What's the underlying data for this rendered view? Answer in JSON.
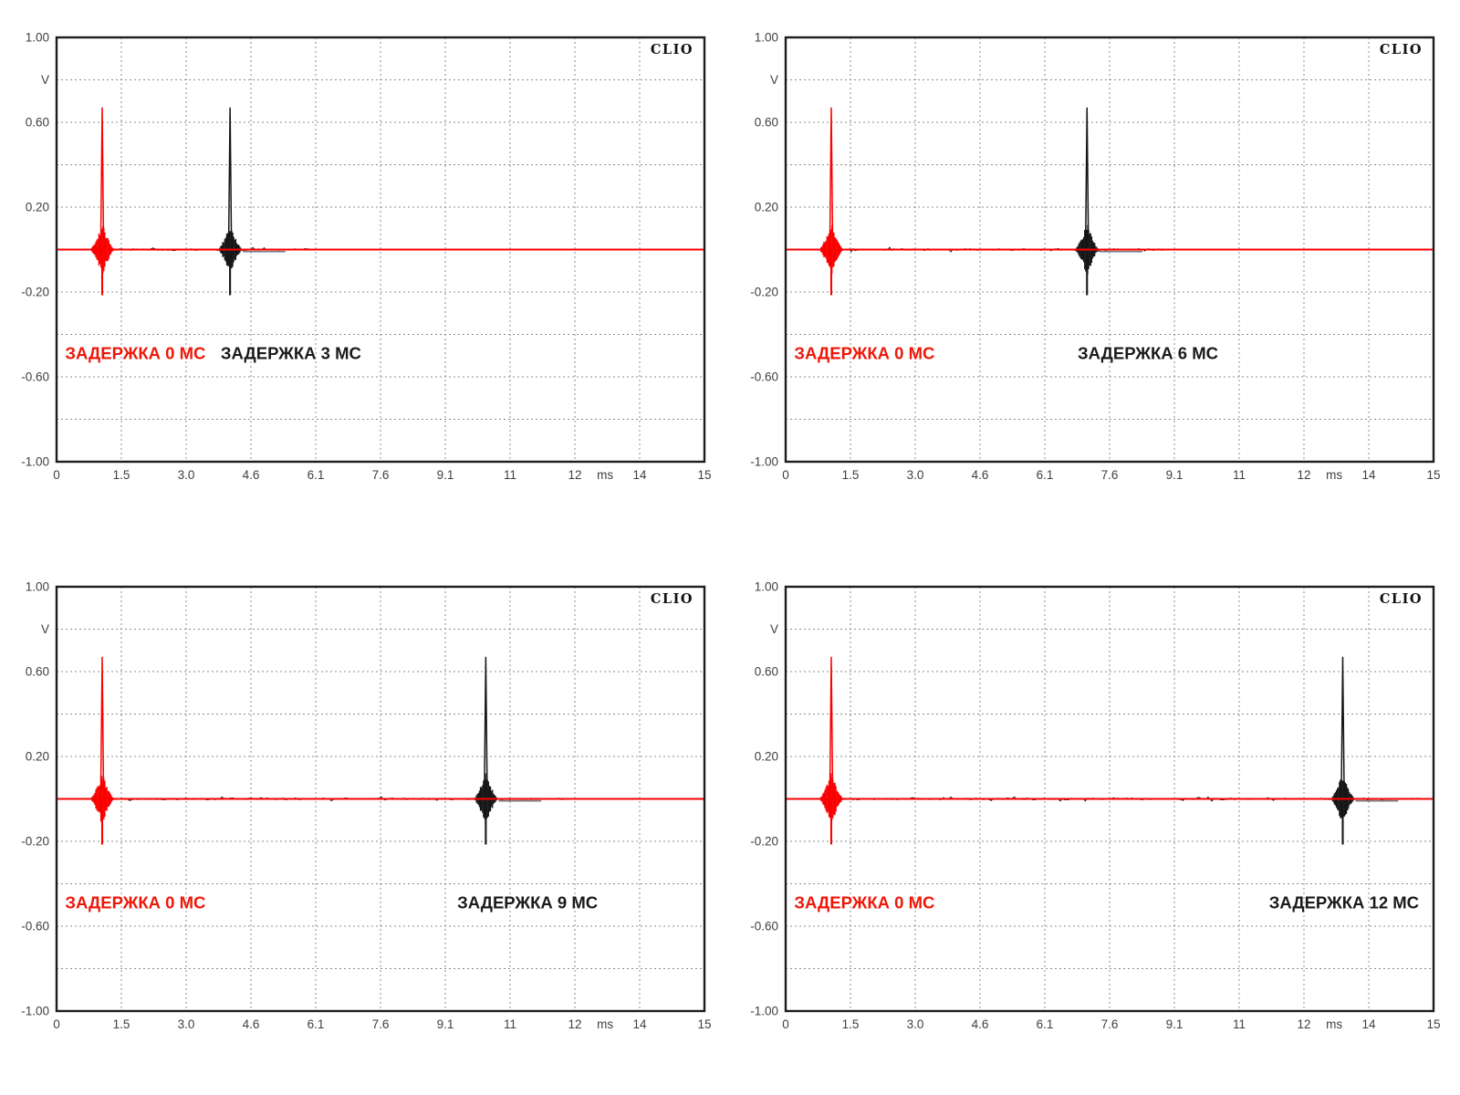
{
  "page": {
    "background": "#ffffff"
  },
  "colors": {
    "grid": "#8c8c8c",
    "axis_border": "#1c1c1c",
    "tick_text": "#3f3f3f",
    "red_trace": "#fa0000",
    "red_label": "#ee1708",
    "black_trace": "#161616",
    "black_label": "#1a1a1a",
    "noise_gray": "#7a7a7a"
  },
  "brand": "CLIO",
  "chart_data": [
    {
      "type": "line",
      "title_badge": "CLIO",
      "y_unit": "V",
      "x_unit": "ms",
      "ylim": [
        -1,
        1
      ],
      "xlim_ms": [
        0,
        15.2
      ],
      "grid": true,
      "y_ticks": [
        {
          "label": "1.00",
          "value": 1.0
        },
        {
          "label": "V",
          "value": 0.8,
          "is_unit": true
        },
        {
          "label": "0.60",
          "value": 0.6
        },
        {
          "label": "0.20",
          "value": 0.2
        },
        {
          "label": "-0.20",
          "value": -0.2
        },
        {
          "label": "-0.60",
          "value": -0.6
        },
        {
          "label": "-1.00",
          "value": -1.0
        }
      ],
      "x_ticks": [
        {
          "label": "0",
          "value": 0
        },
        {
          "label": "1.5",
          "value": 1.52
        },
        {
          "label": "3.0",
          "value": 3.04
        },
        {
          "label": "4.6",
          "value": 4.56
        },
        {
          "label": "6.1",
          "value": 6.08
        },
        {
          "label": "7.6",
          "value": 7.6
        },
        {
          "label": "9.1",
          "value": 9.12
        },
        {
          "label": "11",
          "value": 10.64
        },
        {
          "label": "12",
          "value": 12.16
        },
        {
          "label": "ms",
          "value": 12.87,
          "is_unit": true
        },
        {
          "label": "14",
          "value": 13.68
        },
        {
          "label": "15",
          "value": 15.2
        }
      ],
      "traces": [
        {
          "name": "reference-impulse",
          "label": "ЗАДЕРЖКА 0 МС",
          "delay_ms": 0,
          "impulse_ms": 1.07,
          "peak_v": 0.67,
          "trough_v": -0.215,
          "burst_amp_v": 0.125,
          "burst_halfwidth_ms": 0.29,
          "color": "#fa0000",
          "label_color": "#ee1708",
          "label_center_ms": 1.85,
          "label_v": -0.49
        },
        {
          "name": "delayed-impulse",
          "label": "ЗАДЕРЖКА 3 МС",
          "delay_ms": 3,
          "impulse_ms": 4.07,
          "peak_v": 0.67,
          "trough_v": -0.215,
          "burst_amp_v": 0.125,
          "burst_halfwidth_ms": 0.29,
          "color": "#161616",
          "label_color": "#1a1a1a",
          "label_center_ms": 5.5,
          "label_v": -0.49
        }
      ]
    },
    {
      "type": "line",
      "title_badge": "CLIO",
      "y_unit": "V",
      "x_unit": "ms",
      "ylim": [
        -1,
        1
      ],
      "xlim_ms": [
        0,
        15.2
      ],
      "grid": true,
      "y_ticks": [
        {
          "label": "1.00",
          "value": 1.0
        },
        {
          "label": "V",
          "value": 0.8,
          "is_unit": true
        },
        {
          "label": "0.60",
          "value": 0.6
        },
        {
          "label": "0.20",
          "value": 0.2
        },
        {
          "label": "-0.20",
          "value": -0.2
        },
        {
          "label": "-0.60",
          "value": -0.6
        },
        {
          "label": "-1.00",
          "value": -1.0
        }
      ],
      "x_ticks": [
        {
          "label": "0",
          "value": 0
        },
        {
          "label": "1.5",
          "value": 1.52
        },
        {
          "label": "3.0",
          "value": 3.04
        },
        {
          "label": "4.6",
          "value": 4.56
        },
        {
          "label": "6.1",
          "value": 6.08
        },
        {
          "label": "7.6",
          "value": 7.6
        },
        {
          "label": "9.1",
          "value": 9.12
        },
        {
          "label": "11",
          "value": 10.64
        },
        {
          "label": "12",
          "value": 12.16
        },
        {
          "label": "ms",
          "value": 12.87,
          "is_unit": true
        },
        {
          "label": "14",
          "value": 13.68
        },
        {
          "label": "15",
          "value": 15.2
        }
      ],
      "traces": [
        {
          "name": "reference-impulse",
          "label": "ЗАДЕРЖКА 0 МС",
          "delay_ms": 0,
          "impulse_ms": 1.07,
          "peak_v": 0.67,
          "trough_v": -0.215,
          "burst_amp_v": 0.125,
          "burst_halfwidth_ms": 0.29,
          "color": "#fa0000",
          "label_color": "#ee1708",
          "label_center_ms": 1.85,
          "label_v": -0.49
        },
        {
          "name": "delayed-impulse",
          "label": "ЗАДЕРЖКА 6 МС",
          "delay_ms": 6,
          "impulse_ms": 7.07,
          "peak_v": 0.67,
          "trough_v": -0.215,
          "burst_amp_v": 0.125,
          "burst_halfwidth_ms": 0.29,
          "color": "#161616",
          "label_color": "#1a1a1a",
          "label_center_ms": 8.5,
          "label_v": -0.49
        }
      ]
    },
    {
      "type": "line",
      "title_badge": "CLIO",
      "y_unit": "V",
      "x_unit": "ms",
      "ylim": [
        -1,
        1
      ],
      "xlim_ms": [
        0,
        15.2
      ],
      "grid": true,
      "y_ticks": [
        {
          "label": "1.00",
          "value": 1.0
        },
        {
          "label": "V",
          "value": 0.8,
          "is_unit": true
        },
        {
          "label": "0.60",
          "value": 0.6
        },
        {
          "label": "0.20",
          "value": 0.2
        },
        {
          "label": "-0.20",
          "value": -0.2
        },
        {
          "label": "-0.60",
          "value": -0.6
        },
        {
          "label": "-1.00",
          "value": -1.0
        }
      ],
      "x_ticks": [
        {
          "label": "0",
          "value": 0
        },
        {
          "label": "1.5",
          "value": 1.52
        },
        {
          "label": "3.0",
          "value": 3.04
        },
        {
          "label": "4.6",
          "value": 4.56
        },
        {
          "label": "6.1",
          "value": 6.08
        },
        {
          "label": "7.6",
          "value": 7.6
        },
        {
          "label": "9.1",
          "value": 9.12
        },
        {
          "label": "11",
          "value": 10.64
        },
        {
          "label": "12",
          "value": 12.16
        },
        {
          "label": "ms",
          "value": 12.87,
          "is_unit": true
        },
        {
          "label": "14",
          "value": 13.68
        },
        {
          "label": "15",
          "value": 15.2
        }
      ],
      "traces": [
        {
          "name": "reference-impulse",
          "label": "ЗАДЕРЖКА 0 МС",
          "delay_ms": 0,
          "impulse_ms": 1.07,
          "peak_v": 0.67,
          "trough_v": -0.215,
          "burst_amp_v": 0.125,
          "burst_halfwidth_ms": 0.29,
          "color": "#fa0000",
          "label_color": "#ee1708",
          "label_center_ms": 1.85,
          "label_v": -0.49
        },
        {
          "name": "delayed-impulse",
          "label": "ЗАДЕРЖКА 9 МС",
          "delay_ms": 9,
          "impulse_ms": 10.07,
          "peak_v": 0.67,
          "trough_v": -0.215,
          "burst_amp_v": 0.125,
          "burst_halfwidth_ms": 0.29,
          "color": "#161616",
          "label_color": "#1a1a1a",
          "label_center_ms": 11.05,
          "label_v": -0.49
        }
      ]
    },
    {
      "type": "line",
      "title_badge": "CLIO",
      "y_unit": "V",
      "x_unit": "ms",
      "ylim": [
        -1,
        1
      ],
      "xlim_ms": [
        0,
        15.2
      ],
      "grid": true,
      "y_ticks": [
        {
          "label": "1.00",
          "value": 1.0
        },
        {
          "label": "V",
          "value": 0.8,
          "is_unit": true
        },
        {
          "label": "0.60",
          "value": 0.6
        },
        {
          "label": "0.20",
          "value": 0.2
        },
        {
          "label": "-0.20",
          "value": -0.2
        },
        {
          "label": "-0.60",
          "value": -0.6
        },
        {
          "label": "-1.00",
          "value": -1.0
        }
      ],
      "x_ticks": [
        {
          "label": "0",
          "value": 0
        },
        {
          "label": "1.5",
          "value": 1.52
        },
        {
          "label": "3.0",
          "value": 3.04
        },
        {
          "label": "4.6",
          "value": 4.56
        },
        {
          "label": "6.1",
          "value": 6.08
        },
        {
          "label": "7.6",
          "value": 7.6
        },
        {
          "label": "9.1",
          "value": 9.12
        },
        {
          "label": "11",
          "value": 10.64
        },
        {
          "label": "12",
          "value": 12.16
        },
        {
          "label": "ms",
          "value": 12.87,
          "is_unit": true
        },
        {
          "label": "14",
          "value": 13.68
        },
        {
          "label": "15",
          "value": 15.2
        }
      ],
      "traces": [
        {
          "name": "reference-impulse",
          "label": "ЗАДЕРЖКА 0 МС",
          "delay_ms": 0,
          "impulse_ms": 1.07,
          "peak_v": 0.67,
          "trough_v": -0.215,
          "burst_amp_v": 0.125,
          "burst_halfwidth_ms": 0.29,
          "color": "#fa0000",
          "label_color": "#ee1708",
          "label_center_ms": 1.85,
          "label_v": -0.49
        },
        {
          "name": "delayed-impulse",
          "label": "ЗАДЕРЖКА 12 МС",
          "delay_ms": 12,
          "impulse_ms": 13.07,
          "peak_v": 0.67,
          "trough_v": -0.215,
          "burst_amp_v": 0.125,
          "burst_halfwidth_ms": 0.29,
          "color": "#161616",
          "label_color": "#1a1a1a",
          "label_center_ms": 13.1,
          "label_v": -0.49
        }
      ]
    }
  ]
}
